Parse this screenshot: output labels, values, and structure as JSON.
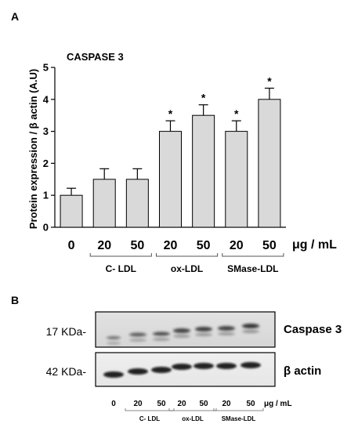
{
  "chart_data": {
    "type": "bar",
    "panel_label": "A",
    "title": "CASPASE 3",
    "ylabel": "Protein expression / β actin (A.U)",
    "xlabel": "μg / mL",
    "ylim": [
      0,
      5
    ],
    "yticks": [
      "0",
      "1",
      "2",
      "3",
      "4",
      "5"
    ],
    "categories": [
      "0",
      "20",
      "50",
      "20",
      "50",
      "20",
      "50"
    ],
    "values": [
      1.0,
      1.5,
      1.5,
      3.0,
      3.5,
      3.0,
      4.0
    ],
    "errors": [
      0.22,
      0.33,
      0.33,
      0.33,
      0.33,
      0.33,
      0.35
    ],
    "significant": [
      false,
      false,
      false,
      true,
      true,
      true,
      true
    ],
    "significance_marker": "*",
    "groups": [
      {
        "label": "C- LDL",
        "from": 1,
        "to": 2
      },
      {
        "label": "ox-LDL",
        "from": 3,
        "to": 4
      },
      {
        "label": "SMase-LDL",
        "from": 5,
        "to": 6
      }
    ],
    "bar_color": "#d9d9d9"
  },
  "blot": {
    "panel_label": "B",
    "rows": [
      {
        "mw": "17 KDa-",
        "protein": "Caspase 3"
      },
      {
        "mw": "42 KDa-",
        "protein": "β actin"
      }
    ],
    "lanes": [
      "0",
      "20",
      "50",
      "20",
      "50",
      "20",
      "50"
    ],
    "unit": "μg / mL",
    "groups": [
      "C- LDL",
      "ox-LDL",
      "SMase-LDL"
    ]
  }
}
